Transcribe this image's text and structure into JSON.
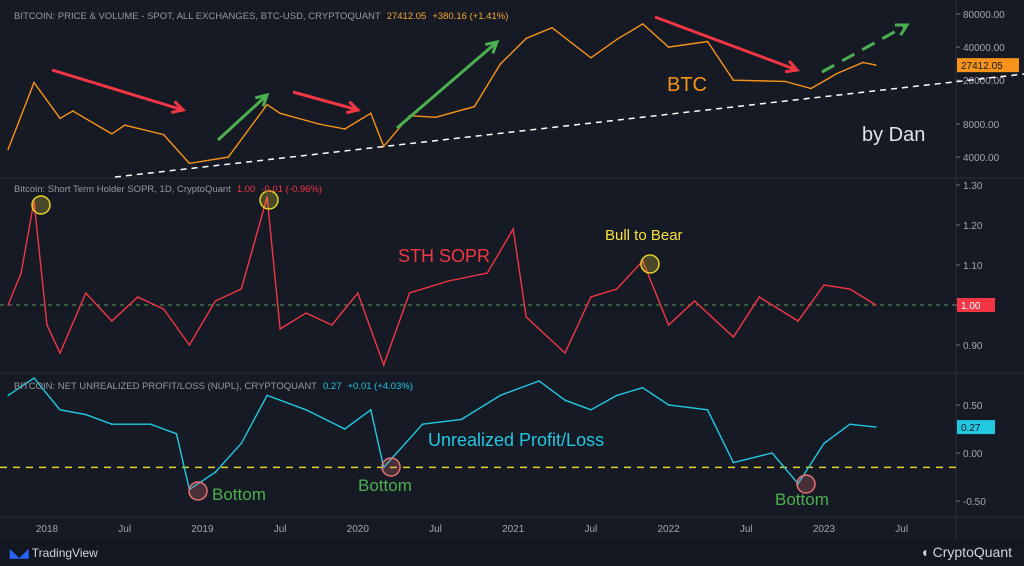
{
  "chart_data": [
    {
      "type": "line",
      "legend": {
        "name": "BITCOIN: PRICE & VOLUME - SPOT, ALL EXCHANGES, BTC-USD, CRYPTOQUANT",
        "value": "27412.05",
        "change": "+380.16 (+1.41%)"
      },
      "scale": "log",
      "yticks": [
        "80000.00",
        "40000.00",
        "20000.00",
        "8000.00",
        "4000.00"
      ],
      "ytick_values": [
        80000,
        40000,
        20000,
        8000,
        4000
      ],
      "last_label": "27412.05",
      "color": "#f7931a",
      "x": [
        "2017-10",
        "2017-12",
        "2018-02",
        "2018-03",
        "2018-06",
        "2018-07",
        "2018-10",
        "2018-12",
        "2019-03",
        "2019-06",
        "2019-07",
        "2019-10",
        "2019-12",
        "2020-02",
        "2020-03",
        "2020-05",
        "2020-07",
        "2020-10",
        "2020-12",
        "2021-02",
        "2021-04",
        "2021-07",
        "2021-09",
        "2021-11",
        "2022-01",
        "2022-04",
        "2022-06",
        "2022-10",
        "2022-12",
        "2023-02",
        "2023-04",
        "2023-05"
      ],
      "y": [
        4700,
        19000,
        9000,
        10500,
        6500,
        7800,
        6400,
        3500,
        4000,
        12000,
        10000,
        8000,
        7200,
        10000,
        5000,
        9500,
        9200,
        11500,
        28000,
        48000,
        60000,
        32000,
        47000,
        65000,
        40000,
        45000,
        20000,
        19500,
        16800,
        23000,
        29000,
        27412
      ]
    },
    {
      "type": "line",
      "legend": {
        "name": "Bitcoin: Short Term Holder SOPR, 1D, CryptoQuant",
        "value": "1.00",
        "change": "-0.01 (-0.96%)"
      },
      "yticks": [
        "1.30",
        "1.20",
        "1.10",
        "1.00",
        "0.90"
      ],
      "ytick_values": [
        1.3,
        1.2,
        1.1,
        1.0,
        0.9
      ],
      "last_label": "1.00",
      "color": "#f23645",
      "reference_line": 1.0,
      "x": [
        "2017-10",
        "2017-11",
        "2017-12",
        "2018-01",
        "2018-02",
        "2018-04",
        "2018-06",
        "2018-08",
        "2018-10",
        "2018-12",
        "2019-02",
        "2019-04",
        "2019-06",
        "2019-07",
        "2019-09",
        "2019-11",
        "2020-01",
        "2020-03",
        "2020-05",
        "2020-08",
        "2020-11",
        "2021-01",
        "2021-02",
        "2021-05",
        "2021-07",
        "2021-09",
        "2021-11",
        "2022-01",
        "2022-03",
        "2022-06",
        "2022-08",
        "2022-11",
        "2023-01",
        "2023-03",
        "2023-05"
      ],
      "y": [
        1.0,
        1.08,
        1.26,
        0.95,
        0.88,
        1.03,
        0.96,
        1.02,
        0.99,
        0.9,
        1.01,
        1.04,
        1.27,
        0.94,
        0.98,
        0.95,
        1.03,
        0.85,
        1.03,
        1.06,
        1.08,
        1.19,
        0.97,
        0.88,
        1.02,
        1.04,
        1.11,
        0.95,
        1.01,
        0.92,
        1.02,
        0.96,
        1.05,
        1.04,
        1.0
      ]
    },
    {
      "type": "line",
      "legend": {
        "name": "BITCOIN: NET UNREALIZED PROFIT/LOSS (NUPL), CRYPTOQUANT",
        "value": "0.27",
        "change": "+0.01 (+4.03%)"
      },
      "yticks": [
        "0.50",
        "0.00",
        "-0.50"
      ],
      "ytick_values": [
        0.5,
        0,
        -0.5
      ],
      "last_label": "0.27",
      "color": "#22c7e0",
      "reference_line": -0.15,
      "x": [
        "2017-10",
        "2017-12",
        "2018-02",
        "2018-04",
        "2018-06",
        "2018-09",
        "2018-11",
        "2018-12",
        "2019-02",
        "2019-04",
        "2019-06",
        "2019-09",
        "2019-12",
        "2020-02",
        "2020-03",
        "2020-06",
        "2020-09",
        "2020-12",
        "2021-03",
        "2021-05",
        "2021-07",
        "2021-09",
        "2021-11",
        "2022-01",
        "2022-04",
        "2022-06",
        "2022-09",
        "2022-11",
        "2023-01",
        "2023-03",
        "2023-05"
      ],
      "y": [
        0.6,
        0.78,
        0.45,
        0.4,
        0.3,
        0.3,
        0.2,
        -0.38,
        -0.2,
        0.1,
        0.6,
        0.45,
        0.25,
        0.45,
        -0.15,
        0.3,
        0.35,
        0.6,
        0.75,
        0.55,
        0.45,
        0.6,
        0.68,
        0.5,
        0.45,
        -0.1,
        0.0,
        -0.32,
        0.1,
        0.3,
        0.27
      ]
    }
  ],
  "xaxis": {
    "ticks": [
      "2018",
      "Jul",
      "2019",
      "Jul",
      "2020",
      "Jul",
      "2021",
      "Jul",
      "2022",
      "Jul",
      "2023",
      "Jul"
    ]
  },
  "annotations": {
    "btc": "BTC",
    "author": "by Dan",
    "sopr": "STH SOPR",
    "bull_to_bear": "Bull to Bear",
    "nupl": "Unrealized Profit/Loss",
    "bottom": "Bottom"
  },
  "footer": {
    "left": "TradingView",
    "right": "CryptoQuant"
  }
}
